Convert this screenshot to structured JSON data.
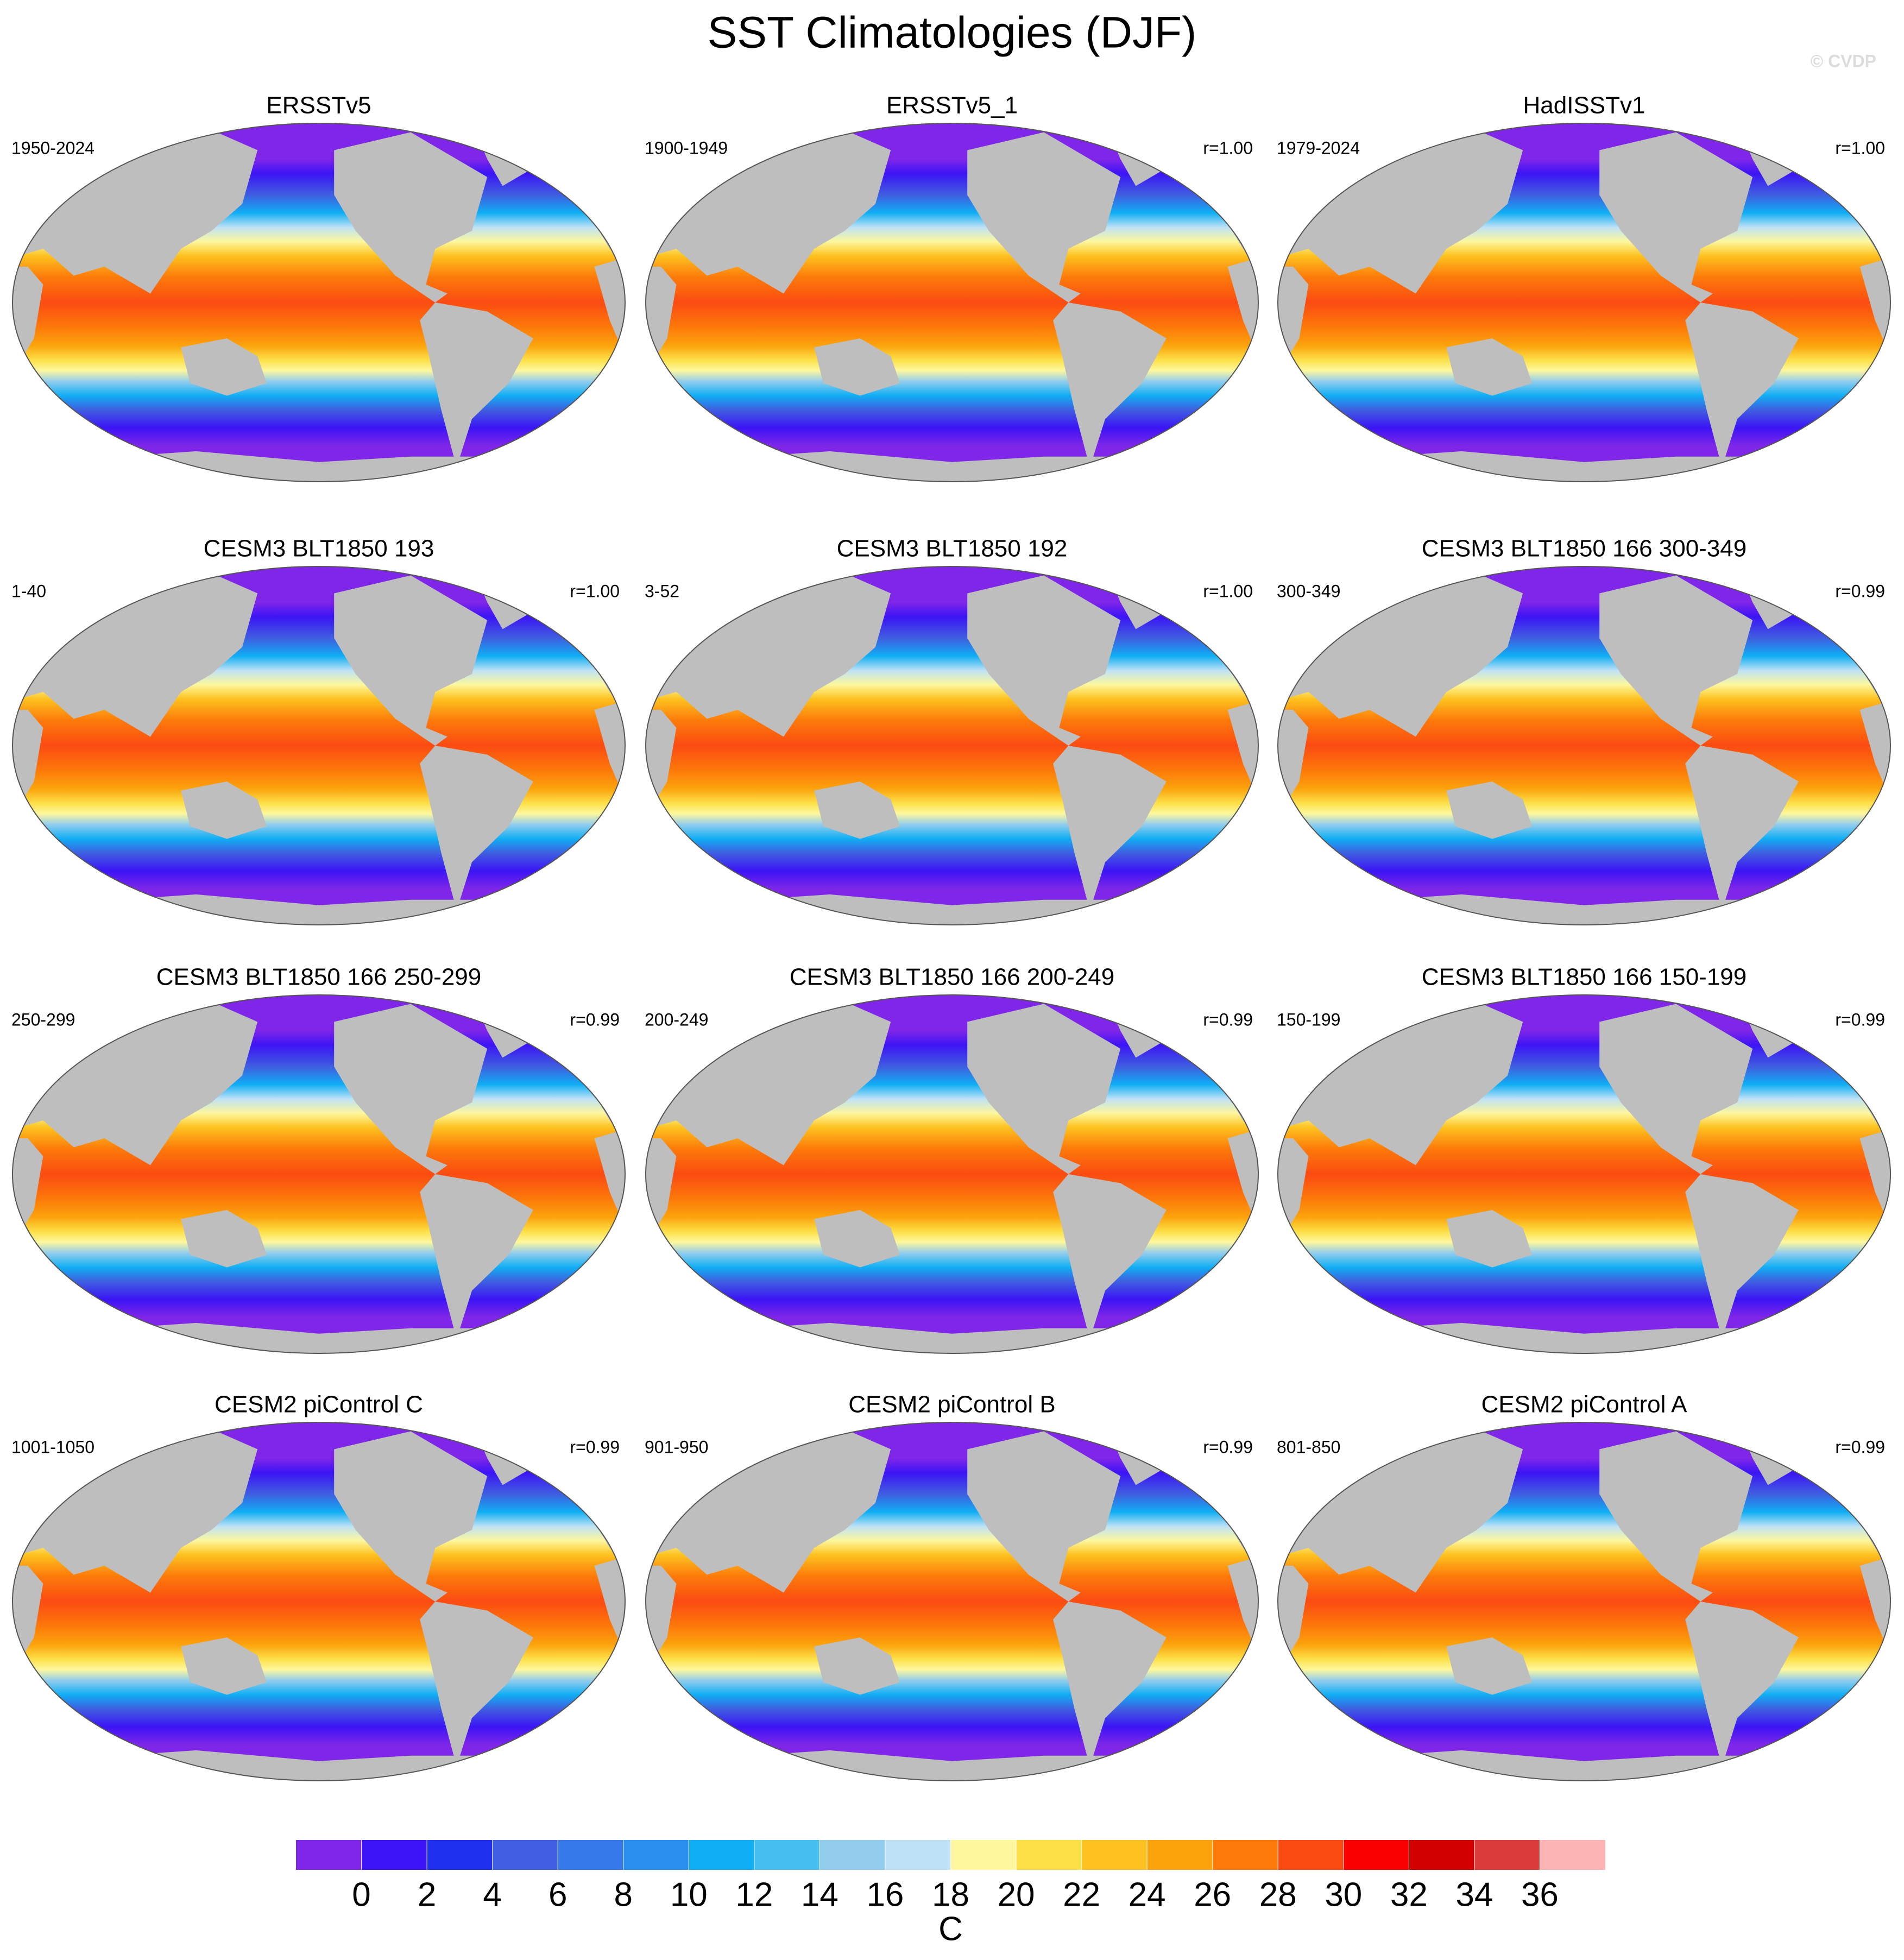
{
  "title": "SST Climatologies (DJF)",
  "watermark": "© CVDP",
  "panels": [
    {
      "title": "ERSSTv5",
      "period": "1950-2024"
    },
    {
      "title": "ERSSTv5_1",
      "period": "1900-1949",
      "r": "r=1.00"
    },
    {
      "title": "HadISSTv1",
      "period": "1979-2024",
      "r": "r=1.00"
    },
    {
      "title": "CESM3 BLT1850 193",
      "period": "1-40",
      "r": "r=1.00"
    },
    {
      "title": "CESM3 BLT1850 192",
      "period": "3-52",
      "r": "r=1.00"
    },
    {
      "title": "CESM3 BLT1850 166 300-349",
      "period": "300-349",
      "r": "r=0.99"
    },
    {
      "title": "CESM3 BLT1850 166 250-299",
      "period": "250-299",
      "r": "r=0.99"
    },
    {
      "title": "CESM3 BLT1850 166 200-249",
      "period": "200-249",
      "r": "r=0.99"
    },
    {
      "title": "CESM3 BLT1850 166 150-199",
      "period": "150-199",
      "r": "r=0.99"
    },
    {
      "title": "CESM2 piControl C",
      "period": "1001-1050",
      "r": "r=0.99"
    },
    {
      "title": "CESM2 piControl B",
      "period": "901-950",
      "r": "r=0.99"
    },
    {
      "title": "CESM2 piControl A",
      "period": "801-850",
      "r": "r=0.99"
    }
  ],
  "colorbar": {
    "label": "C",
    "levels": [
      0,
      2,
      4,
      6,
      8,
      10,
      12,
      14,
      16,
      18,
      20,
      22,
      24,
      26,
      28,
      30,
      32,
      34,
      36
    ],
    "colors": [
      "#8026e8",
      "#3c14f5",
      "#1f30ef",
      "#3f5ee0",
      "#3579ea",
      "#2a90f0",
      "#10aef4",
      "#45bff0",
      "#92cded",
      "#bee1f6",
      "#fdf79e",
      "#fde048",
      "#fdc21f",
      "#fca30c",
      "#fd7a0a",
      "#fb4b12",
      "#fc0000",
      "#d30000",
      "#dc3c3c",
      "#fdb4b4"
    ]
  }
}
